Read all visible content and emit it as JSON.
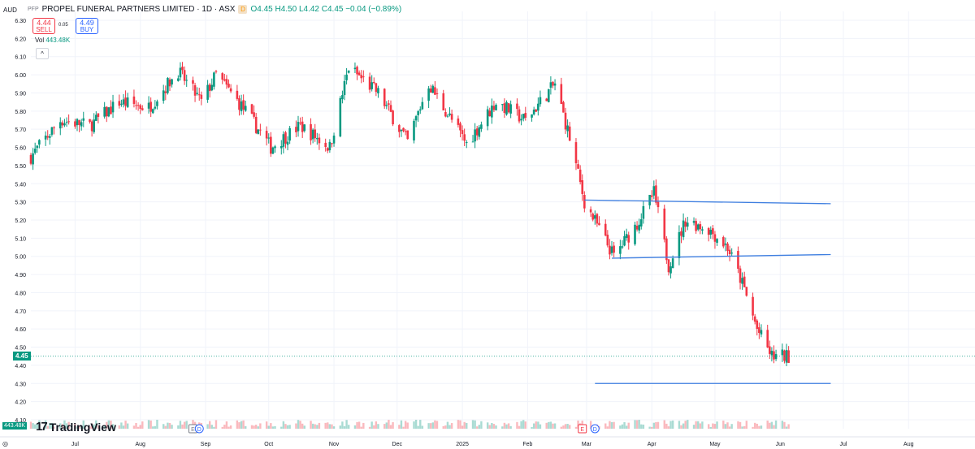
{
  "header": {
    "currency": "AUD",
    "symbol_title": "PROPEL FUNERAL PARTNERS LIMITED · 1D · ASX",
    "symbol_short": "PFP",
    "delayed_badge": "D",
    "ohlc": "O4.45 H4.50 L4.42 C4.45 −0.04 (−0.89%)",
    "sell_price": "4.44",
    "sell_label": "SELL",
    "spread": "0.05",
    "buy_price": "4.49",
    "buy_label": "BUY",
    "volume_label": "Vol",
    "volume_value": "443.48K",
    "collapse_glyph": "^"
  },
  "footer": {
    "logo_text": "TradingView",
    "logo_mark": "17",
    "settings_glyph": "◎"
  },
  "tags": {
    "price_tag": "4.45",
    "volume_tag": "443.48K"
  },
  "colors": {
    "up": "#089981",
    "down": "#f23645",
    "trendline": "#3f7fe0",
    "grid": "#f0f3fa",
    "axis_text": "#131722"
  },
  "chart_data": {
    "type": "candlestick",
    "interval": "1D",
    "exchange": "ASX",
    "y_tick_labels": [
      "6.30",
      "6.20",
      "6.10",
      "6.00",
      "5.90",
      "5.80",
      "5.70",
      "5.60",
      "5.50",
      "5.40",
      "5.30",
      "5.20",
      "5.10",
      "5.00",
      "4.90",
      "4.80",
      "4.70",
      "4.60",
      "4.50",
      "4.40",
      "4.30",
      "4.20",
      "4.10"
    ],
    "ylim": [
      4.1,
      6.3
    ],
    "x_tick_labels": [
      "Jul",
      "Aug",
      "Sep",
      "Oct",
      "Nov",
      "Dec",
      "2025",
      "Feb",
      "Mar",
      "Apr",
      "May",
      "Jun",
      "Jul",
      "Aug"
    ],
    "x_range": [
      "2024-06-10",
      "2025-08-31"
    ],
    "last_price": 4.45,
    "grid": true,
    "price_path": [
      [
        "2024-06-10",
        5.55
      ],
      [
        "2024-06-24",
        5.75
      ],
      [
        "2024-07-08",
        5.72
      ],
      [
        "2024-07-22",
        5.85
      ],
      [
        "2024-08-05",
        5.82
      ],
      [
        "2024-08-12",
        5.92
      ],
      [
        "2024-08-19",
        6.02
      ],
      [
        "2024-08-30",
        5.85
      ],
      [
        "2024-09-06",
        6.0
      ],
      [
        "2024-09-20",
        5.8
      ],
      [
        "2024-10-02",
        5.6
      ],
      [
        "2024-10-16",
        5.72
      ],
      [
        "2024-10-30",
        5.6
      ],
      [
        "2024-11-08",
        6.04
      ],
      [
        "2024-11-22",
        5.9
      ],
      [
        "2024-12-06",
        5.63
      ],
      [
        "2024-12-16",
        5.95
      ],
      [
        "2025-01-03",
        5.62
      ],
      [
        "2025-01-17",
        5.85
      ],
      [
        "2025-01-31",
        5.75
      ],
      [
        "2025-02-14",
        5.95
      ],
      [
        "2025-02-21",
        5.65
      ],
      [
        "2025-02-28",
        5.3
      ],
      [
        "2025-03-14",
        5.0
      ],
      [
        "2025-03-25",
        5.18
      ],
      [
        "2025-04-02",
        5.35
      ],
      [
        "2025-04-09",
        4.95
      ],
      [
        "2025-04-17",
        5.2
      ],
      [
        "2025-04-28",
        5.15
      ],
      [
        "2025-05-07",
        5.05
      ],
      [
        "2025-05-14",
        4.85
      ],
      [
        "2025-05-21",
        4.6
      ],
      [
        "2025-05-28",
        4.45
      ],
      [
        "2025-06-05",
        4.45
      ]
    ],
    "events": [
      {
        "date": "2024-08-26",
        "label": "E"
      },
      {
        "date": "2024-08-29",
        "label": "D"
      },
      {
        "date": "2025-02-27",
        "label": "E"
      },
      {
        "date": "2025-03-05",
        "label": "D"
      }
    ],
    "trendlines": [
      {
        "from": [
          "2025-02-28",
          5.31
        ],
        "to": [
          "2025-06-25",
          5.29
        ]
      },
      {
        "from": [
          "2025-03-13",
          4.99
        ],
        "to": [
          "2025-06-25",
          5.01
        ]
      },
      {
        "from": [
          "2025-03-05",
          4.3
        ],
        "to": [
          "2025-06-25",
          4.3
        ]
      }
    ]
  }
}
